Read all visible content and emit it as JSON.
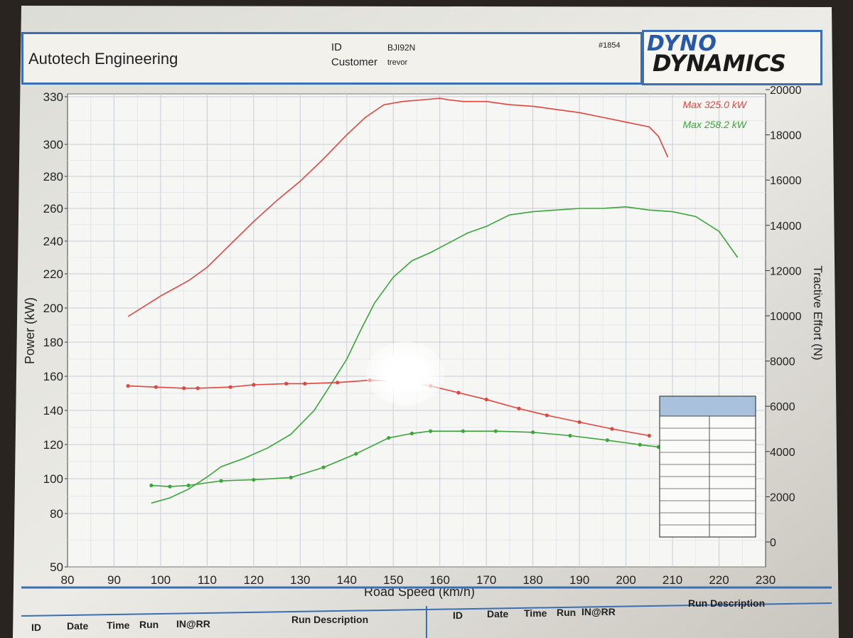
{
  "header": {
    "company": "Autotech Engineering",
    "id_label": "ID",
    "id_value": "BJI92N",
    "customer_label": "Customer",
    "customer_value": "trevor",
    "run_number": "#1854",
    "logo_top": "DYNO",
    "logo_bottom": "DYNAMICS"
  },
  "legend": {
    "max_red": "Max 325.0 kW",
    "max_green": "Max 258.2 kW"
  },
  "footer": {
    "left": [
      "ID",
      "Date",
      "Time",
      "Run",
      "IN@RR",
      "Run Description"
    ],
    "right": [
      "ID",
      "Date",
      "Time",
      "Run",
      "IN@RR",
      "Run Description"
    ]
  },
  "colors": {
    "red": "#e0453f",
    "green": "#3aa63a",
    "grid": "#c8ccd4",
    "frame": "#3a6fb3"
  },
  "chart_data": {
    "type": "line",
    "xlabel": "Road Speed (km/h)",
    "ylabel": "Power (kW)",
    "y2label": "Tractive Effort (N)",
    "xlim": [
      80,
      230
    ],
    "ylim": [
      50,
      330
    ],
    "y2lim": [
      0,
      20000
    ],
    "x_ticks": [
      80,
      90,
      100,
      110,
      120,
      130,
      140,
      150,
      160,
      170,
      180,
      190,
      200,
      210,
      220,
      230
    ],
    "y_ticks": [
      50,
      80,
      100,
      120,
      140,
      160,
      180,
      200,
      220,
      240,
      260,
      280,
      300,
      330
    ],
    "y2_ticks": [
      0,
      2000,
      4000,
      6000,
      8000,
      10000,
      12000,
      14000,
      16000,
      18000,
      20000
    ],
    "grid": true,
    "legend_position": "top-right",
    "series": [
      {
        "name": "Max 325.0 kW",
        "axis": "left",
        "color": "#e0453f",
        "x": [
          93,
          100,
          106,
          110,
          115,
          120,
          125,
          130,
          135,
          140,
          144,
          148,
          152,
          156,
          160,
          162,
          165,
          170,
          175,
          180,
          185,
          190,
          195,
          200,
          205,
          207,
          209
        ],
        "y": [
          195,
          207,
          216,
          224,
          238,
          252,
          265,
          277,
          291,
          306,
          317,
          325,
          327,
          328,
          329,
          328,
          327,
          327,
          325,
          324,
          322,
          320,
          317,
          314,
          311,
          305,
          292
        ]
      },
      {
        "name": "Max 258.2 kW",
        "axis": "left",
        "color": "#3aa63a",
        "x": [
          98,
          102,
          106,
          110,
          113,
          118,
          123,
          128,
          133,
          137,
          140,
          143,
          146,
          150,
          154,
          158,
          162,
          166,
          170,
          175,
          180,
          185,
          190,
          195,
          200,
          205,
          210,
          215,
          220,
          224
        ],
        "y": [
          86,
          89,
          94,
          101,
          107,
          112,
          118,
          126,
          140,
          157,
          170,
          187,
          203,
          218,
          228,
          233,
          239,
          245,
          249,
          256,
          258,
          259,
          260,
          260,
          261,
          259,
          258,
          255,
          246,
          230
        ]
      },
      {
        "name": "",
        "axis": "right",
        "color": "#e0453f",
        "markers": true,
        "x": [
          93,
          99,
          105,
          108,
          115,
          120,
          127,
          131,
          138,
          145,
          152,
          158,
          164,
          170,
          177,
          183,
          190,
          197,
          205
        ],
        "y": [
          6900,
          6850,
          6800,
          6800,
          6850,
          6950,
          7000,
          7000,
          7050,
          7150,
          7100,
          6900,
          6600,
          6300,
          5900,
          5600,
          5300,
          5000,
          4700
        ]
      },
      {
        "name": "",
        "axis": "right",
        "color": "#3aa63a",
        "markers": true,
        "x": [
          98,
          102,
          106,
          113,
          120,
          128,
          135,
          142,
          149,
          154,
          158,
          165,
          172,
          180,
          188,
          196,
          203,
          207
        ],
        "y": [
          2500,
          2450,
          2500,
          2700,
          2750,
          2850,
          3300,
          3900,
          4600,
          4800,
          4900,
          4900,
          4900,
          4850,
          4700,
          4500,
          4300,
          4200
        ]
      }
    ]
  }
}
